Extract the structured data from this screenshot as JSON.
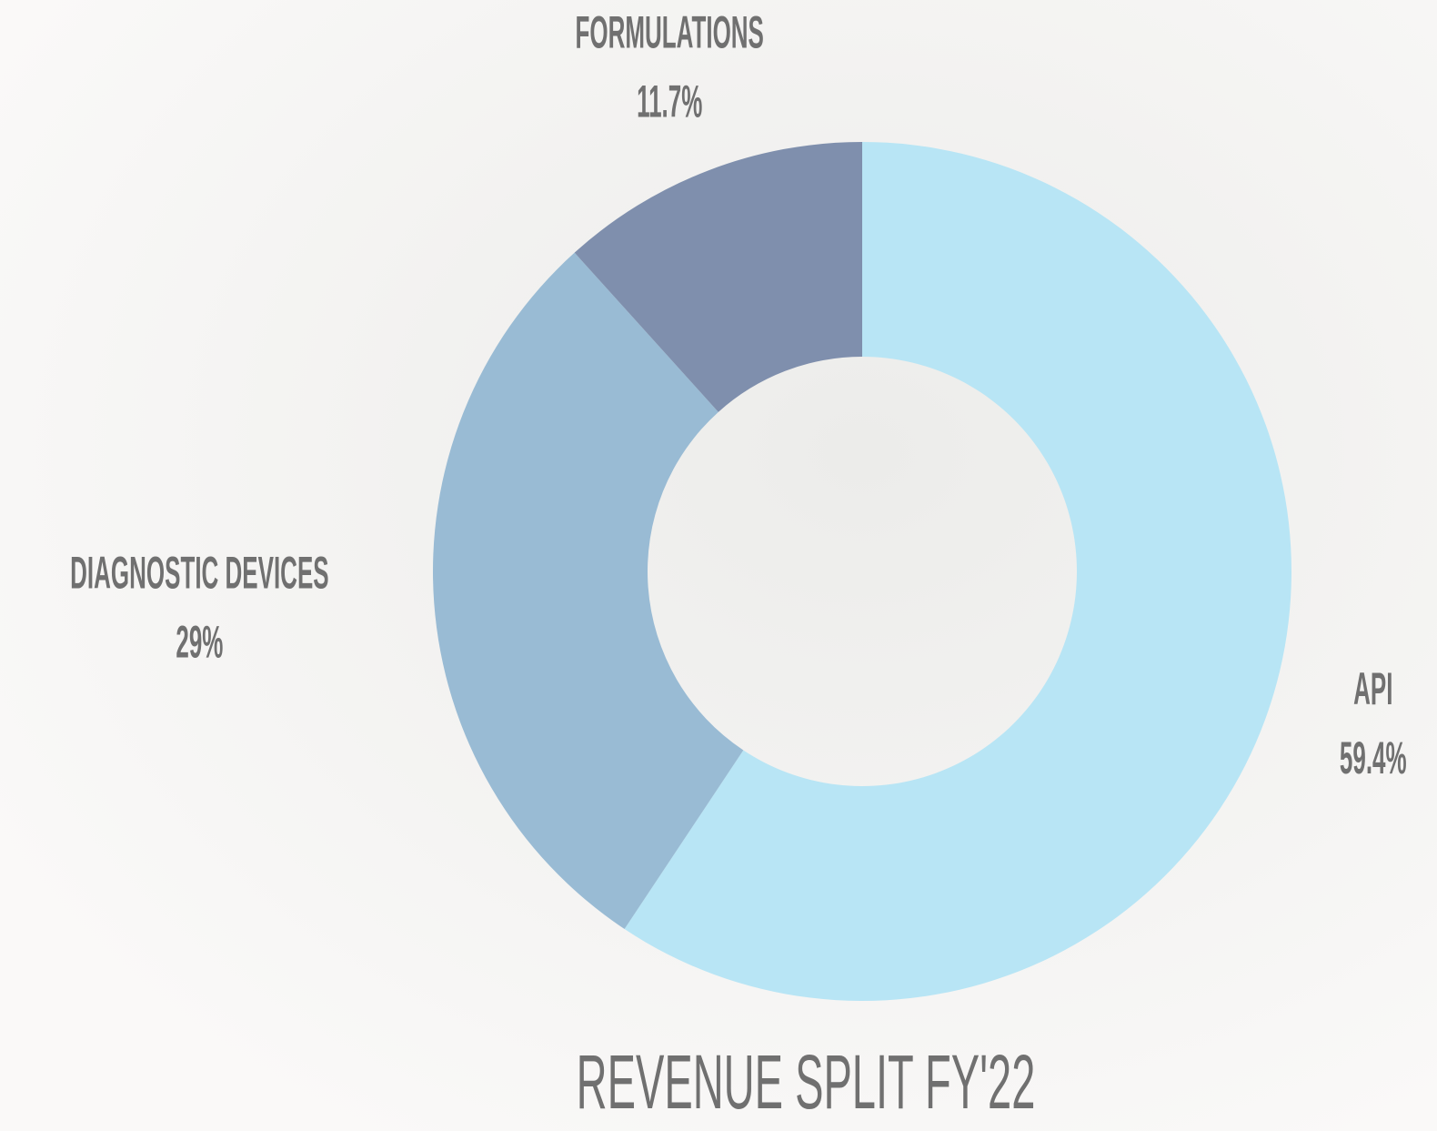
{
  "chart_data": {
    "type": "donut",
    "title": "REVENUE SPLIT FY'22",
    "categories": [
      "API",
      "DIAGNOSTIC DEVICES",
      "FORMULATIONS"
    ],
    "values": [
      59.4,
      29,
      11.7
    ],
    "value_labels": [
      "59.4%",
      "29%",
      "11.7%"
    ],
    "colors": [
      "#b8e5f5",
      "#99bbd4",
      "#7f8fad"
    ]
  }
}
